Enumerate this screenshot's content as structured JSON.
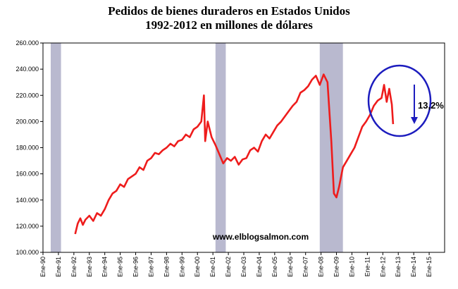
{
  "chart_data": {
    "type": "line",
    "title": "Pedidos de bienes duraderos en Estados Unidos",
    "subtitle": "1992-2012 en millones de dólares",
    "xlabel": "",
    "ylabel": "",
    "ylim": [
      100000,
      260000
    ],
    "xlim": [
      "1990-01",
      "2016-01"
    ],
    "y_ticks": [
      "100.000",
      "120.000",
      "140.000",
      "160.000",
      "180.000",
      "200.000",
      "220.000",
      "240.000",
      "260.000"
    ],
    "y_tick_values": [
      100000,
      120000,
      140000,
      160000,
      180000,
      200000,
      220000,
      240000,
      260000
    ],
    "x_ticks": [
      "Ene-90",
      "Ene-91",
      "Ene-92",
      "Ene-93",
      "Ene-94",
      "Ene-95",
      "Ene-96",
      "Ene-97",
      "Ene-98",
      "Ene-99",
      "Ene-00",
      "Ene-01",
      "Ene-02",
      "Ene-03",
      "Ene-04",
      "Ene-05",
      "Ene-06",
      "Ene-07",
      "Ene-08",
      "Ene-09",
      "Ene-10",
      "Ene-11",
      "Ene-12",
      "Ene-13",
      "Ene-14",
      "Ene-15"
    ],
    "grid": false,
    "line_color": "#ee1c1c",
    "recession_color": "#b9b9cf",
    "recessions": [
      [
        "1990-07",
        "1991-03"
      ],
      [
        "2001-03",
        "2001-11"
      ],
      [
        "2007-12",
        "2009-06"
      ]
    ],
    "series": [
      {
        "x": [
          "1992-02",
          "1992-04",
          "1992-06",
          "1992-08",
          "1992-10",
          "1993-01",
          "1993-04",
          "1993-07",
          "1993-10",
          "1994-01",
          "1994-04",
          "1994-07",
          "1994-10",
          "1995-01",
          "1995-04",
          "1995-07",
          "1995-10",
          "1996-01",
          "1996-04",
          "1996-07",
          "1996-10",
          "1997-01",
          "1997-04",
          "1997-07",
          "1997-10",
          "1998-01",
          "1998-04",
          "1998-07",
          "1998-10",
          "1999-01",
          "1999-04",
          "1999-07",
          "1999-10",
          "2000-01",
          "2000-04",
          "2000-06",
          "2000-07",
          "2000-09",
          "2000-12",
          "2001-03",
          "2001-06",
          "2001-09",
          "2001-12",
          "2002-03",
          "2002-06",
          "2002-09",
          "2002-12",
          "2003-03",
          "2003-06",
          "2003-09",
          "2003-12",
          "2004-03",
          "2004-06",
          "2004-09",
          "2004-12",
          "2005-03",
          "2005-06",
          "2005-09",
          "2005-12",
          "2006-03",
          "2006-06",
          "2006-09",
          "2006-12",
          "2007-03",
          "2007-06",
          "2007-09",
          "2007-12",
          "2008-03",
          "2008-06",
          "2008-09",
          "2008-11",
          "2009-01",
          "2009-03",
          "2009-06",
          "2009-09",
          "2009-12",
          "2010-03",
          "2010-06",
          "2010-09",
          "2010-12",
          "2011-03",
          "2011-06",
          "2011-09",
          "2011-12",
          "2012-02",
          "2012-04",
          "2012-06",
          "2012-08",
          "2012-09"
        ],
        "values": [
          114000,
          122000,
          126000,
          121000,
          125000,
          128000,
          124000,
          130000,
          128000,
          133000,
          140000,
          145000,
          147000,
          152000,
          150000,
          156000,
          158000,
          160000,
          165000,
          163000,
          170000,
          172000,
          176000,
          175000,
          178000,
          180000,
          183000,
          181000,
          185000,
          186000,
          190000,
          188000,
          194000,
          196000,
          200000,
          220000,
          185000,
          200000,
          188000,
          182000,
          175000,
          168000,
          172000,
          170000,
          173000,
          167000,
          171000,
          172000,
          178000,
          180000,
          177000,
          185000,
          190000,
          187000,
          192000,
          197000,
          200000,
          204000,
          208000,
          212000,
          215000,
          222000,
          224000,
          227000,
          232000,
          235000,
          228000,
          236000,
          230000,
          185000,
          145000,
          142000,
          150000,
          165000,
          170000,
          175000,
          180000,
          188000,
          196000,
          200000,
          205000,
          212000,
          216000,
          218000,
          228000,
          215000,
          225000,
          213000,
          198000
        ]
      }
    ]
  },
  "annotation": {
    "text": "13,2%",
    "circle_color": "#1c1cbe",
    "arrow_color": "#1c1cbe"
  },
  "watermark": "www.elblogsalmon.com"
}
